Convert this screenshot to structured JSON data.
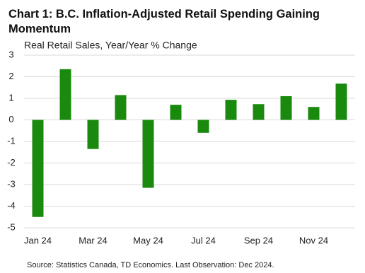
{
  "chart_data": {
    "type": "bar",
    "title": "Chart 1: B.C. Inflation-Adjusted Retail Spending Gaining Momentum",
    "subtitle": "Real Retail Sales, Year/Year % Change",
    "source": "Source: Statistics Canada, TD Economics. Last Observation: Dec 2024.",
    "categories": [
      "Jan 24",
      null,
      "Mar 24",
      null,
      "May 24",
      null,
      "Jul 24",
      null,
      "Sep 24",
      null,
      "Nov 24",
      null
    ],
    "values": [
      -4.5,
      2.35,
      -1.35,
      1.15,
      -3.15,
      0.7,
      -0.6,
      0.93,
      0.73,
      1.1,
      0.6,
      1.68
    ],
    "color": "#1a8a0e",
    "ylim": [
      -5,
      3
    ],
    "yticks": [
      -5,
      -4,
      -3,
      -2,
      -1,
      0,
      1,
      2,
      3
    ],
    "grid": true
  }
}
